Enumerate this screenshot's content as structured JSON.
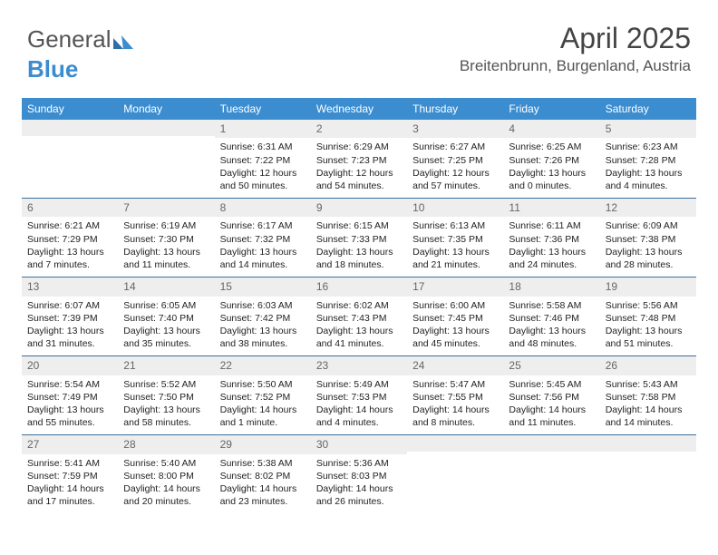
{
  "brand": {
    "part1": "General",
    "part2": "Blue"
  },
  "title": "April 2025",
  "location": "Breitenbrunn, Burgenland, Austria",
  "colors": {
    "headerBg": "#3b8dd0",
    "headerText": "#ffffff",
    "dayNumBg": "#eeeeee",
    "dayNumText": "#666666",
    "bodyText": "#222222",
    "weekBorder": "#3b6f9e"
  },
  "weekdays": [
    "Sunday",
    "Monday",
    "Tuesday",
    "Wednesday",
    "Thursday",
    "Friday",
    "Saturday"
  ],
  "weeks": [
    [
      {
        "n": "",
        "sunrise": "",
        "sunset": "",
        "daylight": ""
      },
      {
        "n": "",
        "sunrise": "",
        "sunset": "",
        "daylight": ""
      },
      {
        "n": "1",
        "sunrise": "Sunrise: 6:31 AM",
        "sunset": "Sunset: 7:22 PM",
        "daylight": "Daylight: 12 hours and 50 minutes."
      },
      {
        "n": "2",
        "sunrise": "Sunrise: 6:29 AM",
        "sunset": "Sunset: 7:23 PM",
        "daylight": "Daylight: 12 hours and 54 minutes."
      },
      {
        "n": "3",
        "sunrise": "Sunrise: 6:27 AM",
        "sunset": "Sunset: 7:25 PM",
        "daylight": "Daylight: 12 hours and 57 minutes."
      },
      {
        "n": "4",
        "sunrise": "Sunrise: 6:25 AM",
        "sunset": "Sunset: 7:26 PM",
        "daylight": "Daylight: 13 hours and 0 minutes."
      },
      {
        "n": "5",
        "sunrise": "Sunrise: 6:23 AM",
        "sunset": "Sunset: 7:28 PM",
        "daylight": "Daylight: 13 hours and 4 minutes."
      }
    ],
    [
      {
        "n": "6",
        "sunrise": "Sunrise: 6:21 AM",
        "sunset": "Sunset: 7:29 PM",
        "daylight": "Daylight: 13 hours and 7 minutes."
      },
      {
        "n": "7",
        "sunrise": "Sunrise: 6:19 AM",
        "sunset": "Sunset: 7:30 PM",
        "daylight": "Daylight: 13 hours and 11 minutes."
      },
      {
        "n": "8",
        "sunrise": "Sunrise: 6:17 AM",
        "sunset": "Sunset: 7:32 PM",
        "daylight": "Daylight: 13 hours and 14 minutes."
      },
      {
        "n": "9",
        "sunrise": "Sunrise: 6:15 AM",
        "sunset": "Sunset: 7:33 PM",
        "daylight": "Daylight: 13 hours and 18 minutes."
      },
      {
        "n": "10",
        "sunrise": "Sunrise: 6:13 AM",
        "sunset": "Sunset: 7:35 PM",
        "daylight": "Daylight: 13 hours and 21 minutes."
      },
      {
        "n": "11",
        "sunrise": "Sunrise: 6:11 AM",
        "sunset": "Sunset: 7:36 PM",
        "daylight": "Daylight: 13 hours and 24 minutes."
      },
      {
        "n": "12",
        "sunrise": "Sunrise: 6:09 AM",
        "sunset": "Sunset: 7:38 PM",
        "daylight": "Daylight: 13 hours and 28 minutes."
      }
    ],
    [
      {
        "n": "13",
        "sunrise": "Sunrise: 6:07 AM",
        "sunset": "Sunset: 7:39 PM",
        "daylight": "Daylight: 13 hours and 31 minutes."
      },
      {
        "n": "14",
        "sunrise": "Sunrise: 6:05 AM",
        "sunset": "Sunset: 7:40 PM",
        "daylight": "Daylight: 13 hours and 35 minutes."
      },
      {
        "n": "15",
        "sunrise": "Sunrise: 6:03 AM",
        "sunset": "Sunset: 7:42 PM",
        "daylight": "Daylight: 13 hours and 38 minutes."
      },
      {
        "n": "16",
        "sunrise": "Sunrise: 6:02 AM",
        "sunset": "Sunset: 7:43 PM",
        "daylight": "Daylight: 13 hours and 41 minutes."
      },
      {
        "n": "17",
        "sunrise": "Sunrise: 6:00 AM",
        "sunset": "Sunset: 7:45 PM",
        "daylight": "Daylight: 13 hours and 45 minutes."
      },
      {
        "n": "18",
        "sunrise": "Sunrise: 5:58 AM",
        "sunset": "Sunset: 7:46 PM",
        "daylight": "Daylight: 13 hours and 48 minutes."
      },
      {
        "n": "19",
        "sunrise": "Sunrise: 5:56 AM",
        "sunset": "Sunset: 7:48 PM",
        "daylight": "Daylight: 13 hours and 51 minutes."
      }
    ],
    [
      {
        "n": "20",
        "sunrise": "Sunrise: 5:54 AM",
        "sunset": "Sunset: 7:49 PM",
        "daylight": "Daylight: 13 hours and 55 minutes."
      },
      {
        "n": "21",
        "sunrise": "Sunrise: 5:52 AM",
        "sunset": "Sunset: 7:50 PM",
        "daylight": "Daylight: 13 hours and 58 minutes."
      },
      {
        "n": "22",
        "sunrise": "Sunrise: 5:50 AM",
        "sunset": "Sunset: 7:52 PM",
        "daylight": "Daylight: 14 hours and 1 minute."
      },
      {
        "n": "23",
        "sunrise": "Sunrise: 5:49 AM",
        "sunset": "Sunset: 7:53 PM",
        "daylight": "Daylight: 14 hours and 4 minutes."
      },
      {
        "n": "24",
        "sunrise": "Sunrise: 5:47 AM",
        "sunset": "Sunset: 7:55 PM",
        "daylight": "Daylight: 14 hours and 8 minutes."
      },
      {
        "n": "25",
        "sunrise": "Sunrise: 5:45 AM",
        "sunset": "Sunset: 7:56 PM",
        "daylight": "Daylight: 14 hours and 11 minutes."
      },
      {
        "n": "26",
        "sunrise": "Sunrise: 5:43 AM",
        "sunset": "Sunset: 7:58 PM",
        "daylight": "Daylight: 14 hours and 14 minutes."
      }
    ],
    [
      {
        "n": "27",
        "sunrise": "Sunrise: 5:41 AM",
        "sunset": "Sunset: 7:59 PM",
        "daylight": "Daylight: 14 hours and 17 minutes."
      },
      {
        "n": "28",
        "sunrise": "Sunrise: 5:40 AM",
        "sunset": "Sunset: 8:00 PM",
        "daylight": "Daylight: 14 hours and 20 minutes."
      },
      {
        "n": "29",
        "sunrise": "Sunrise: 5:38 AM",
        "sunset": "Sunset: 8:02 PM",
        "daylight": "Daylight: 14 hours and 23 minutes."
      },
      {
        "n": "30",
        "sunrise": "Sunrise: 5:36 AM",
        "sunset": "Sunset: 8:03 PM",
        "daylight": "Daylight: 14 hours and 26 minutes."
      },
      {
        "n": "",
        "sunrise": "",
        "sunset": "",
        "daylight": ""
      },
      {
        "n": "",
        "sunrise": "",
        "sunset": "",
        "daylight": ""
      },
      {
        "n": "",
        "sunrise": "",
        "sunset": "",
        "daylight": ""
      }
    ]
  ]
}
